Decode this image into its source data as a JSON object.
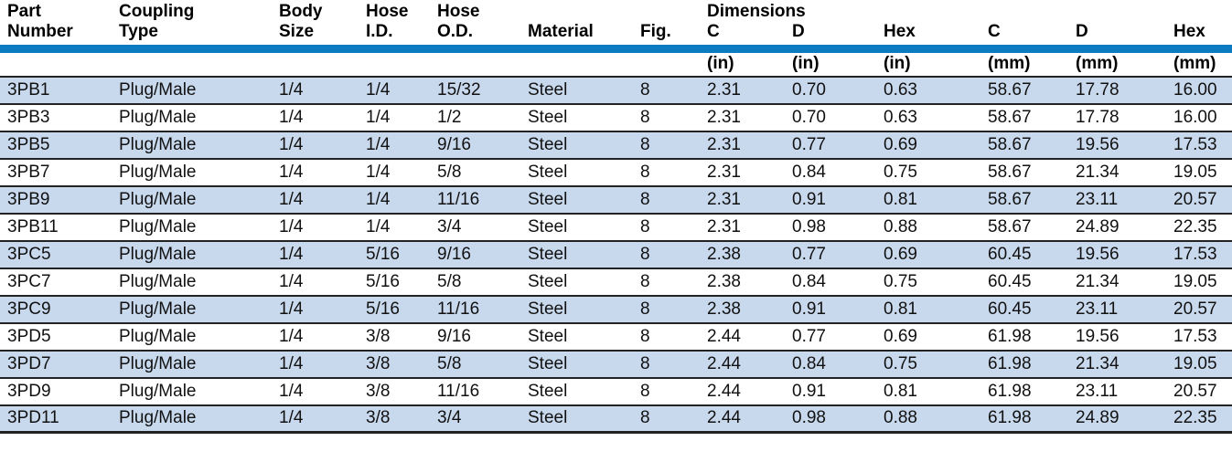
{
  "colors": {
    "rule_blue": "#0d7bc1",
    "stripe_blue": "#c9d9ed",
    "separator_dark": "#222222"
  },
  "table": {
    "group_header": "Dimensions",
    "columns": [
      {
        "line1": "Part",
        "line2": "Number",
        "unit": ""
      },
      {
        "line1": "Coupling",
        "line2": "Type",
        "unit": ""
      },
      {
        "line1": "Body",
        "line2": "Size",
        "unit": ""
      },
      {
        "line1": "Hose",
        "line2": "I.D.",
        "unit": ""
      },
      {
        "line1": "Hose",
        "line2": "O.D.",
        "unit": ""
      },
      {
        "line1": "",
        "line2": "Material",
        "unit": ""
      },
      {
        "line1": "",
        "line2": "Fig.",
        "unit": ""
      },
      {
        "line1": "",
        "line2": "C",
        "unit": "(in)"
      },
      {
        "line1": "",
        "line2": "D",
        "unit": "(in)"
      },
      {
        "line1": "",
        "line2": "Hex",
        "unit": "(in)"
      },
      {
        "line1": "",
        "line2": "C",
        "unit": "(mm)"
      },
      {
        "line1": "",
        "line2": "D",
        "unit": "(mm)"
      },
      {
        "line1": "",
        "line2": "Hex",
        "unit": "(mm)"
      }
    ],
    "rows": [
      [
        "3PB1",
        "Plug/Male",
        "1/4",
        "1/4",
        "15/32",
        "Steel",
        "8",
        "2.31",
        "0.70",
        "0.63",
        "58.67",
        "17.78",
        "16.00"
      ],
      [
        "3PB3",
        "Plug/Male",
        "1/4",
        "1/4",
        "1/2",
        "Steel",
        "8",
        "2.31",
        "0.70",
        "0.63",
        "58.67",
        "17.78",
        "16.00"
      ],
      [
        "3PB5",
        "Plug/Male",
        "1/4",
        "1/4",
        "9/16",
        "Steel",
        "8",
        "2.31",
        "0.77",
        "0.69",
        "58.67",
        "19.56",
        "17.53"
      ],
      [
        "3PB7",
        "Plug/Male",
        "1/4",
        "1/4",
        "5/8",
        "Steel",
        "8",
        "2.31",
        "0.84",
        "0.75",
        "58.67",
        "21.34",
        "19.05"
      ],
      [
        "3PB9",
        "Plug/Male",
        "1/4",
        "1/4",
        "11/16",
        "Steel",
        "8",
        "2.31",
        "0.91",
        "0.81",
        "58.67",
        "23.11",
        "20.57"
      ],
      [
        "3PB11",
        "Plug/Male",
        "1/4",
        "1/4",
        "3/4",
        "Steel",
        "8",
        "2.31",
        "0.98",
        "0.88",
        "58.67",
        "24.89",
        "22.35"
      ],
      [
        "3PC5",
        "Plug/Male",
        "1/4",
        "5/16",
        "9/16",
        "Steel",
        "8",
        "2.38",
        "0.77",
        "0.69",
        "60.45",
        "19.56",
        "17.53"
      ],
      [
        "3PC7",
        "Plug/Male",
        "1/4",
        "5/16",
        "5/8",
        "Steel",
        "8",
        "2.38",
        "0.84",
        "0.75",
        "60.45",
        "21.34",
        "19.05"
      ],
      [
        "3PC9",
        "Plug/Male",
        "1/4",
        "5/16",
        "11/16",
        "Steel",
        "8",
        "2.38",
        "0.91",
        "0.81",
        "60.45",
        "23.11",
        "20.57"
      ],
      [
        "3PD5",
        "Plug/Male",
        "1/4",
        "3/8",
        "9/16",
        "Steel",
        "8",
        "2.44",
        "0.77",
        "0.69",
        "61.98",
        "19.56",
        "17.53"
      ],
      [
        "3PD7",
        "Plug/Male",
        "1/4",
        "3/8",
        "5/8",
        "Steel",
        "8",
        "2.44",
        "0.84",
        "0.75",
        "61.98",
        "21.34",
        "19.05"
      ],
      [
        "3PD9",
        "Plug/Male",
        "1/4",
        "3/8",
        "11/16",
        "Steel",
        "8",
        "2.44",
        "0.91",
        "0.81",
        "61.98",
        "23.11",
        "20.57"
      ],
      [
        "3PD11",
        "Plug/Male",
        "1/4",
        "3/8",
        "3/4",
        "Steel",
        "8",
        "2.44",
        "0.98",
        "0.88",
        "61.98",
        "24.89",
        "22.35"
      ]
    ]
  }
}
